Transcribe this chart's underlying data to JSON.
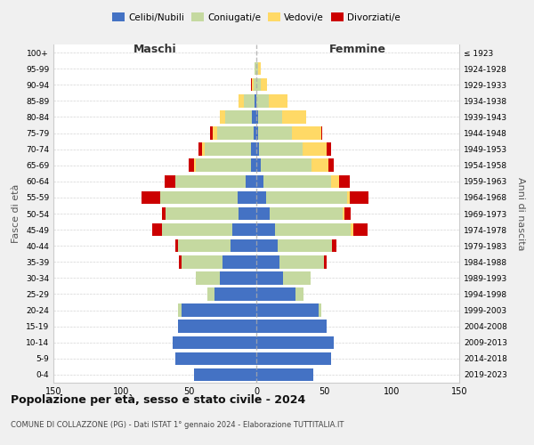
{
  "age_groups": [
    "0-4",
    "5-9",
    "10-14",
    "15-19",
    "20-24",
    "25-29",
    "30-34",
    "35-39",
    "40-44",
    "45-49",
    "50-54",
    "55-59",
    "60-64",
    "65-69",
    "70-74",
    "75-79",
    "80-84",
    "85-89",
    "90-94",
    "95-99",
    "100+"
  ],
  "birth_years": [
    "2019-2023",
    "2014-2018",
    "2009-2013",
    "2004-2008",
    "1999-2003",
    "1994-1998",
    "1989-1993",
    "1984-1988",
    "1979-1983",
    "1974-1978",
    "1969-1973",
    "1964-1968",
    "1959-1963",
    "1954-1958",
    "1949-1953",
    "1944-1948",
    "1939-1943",
    "1934-1938",
    "1929-1933",
    "1924-1928",
    "≤ 1923"
  ],
  "maschi": {
    "celibi": [
      46,
      60,
      62,
      58,
      55,
      31,
      27,
      25,
      19,
      18,
      13,
      14,
      8,
      4,
      4,
      2,
      3,
      1,
      0,
      0,
      0
    ],
    "coniugati": [
      0,
      0,
      0,
      0,
      3,
      5,
      18,
      30,
      39,
      52,
      54,
      57,
      52,
      41,
      34,
      27,
      20,
      8,
      2,
      1,
      0
    ],
    "vedovi": [
      0,
      0,
      0,
      0,
      0,
      0,
      0,
      0,
      0,
      0,
      0,
      0,
      0,
      1,
      2,
      3,
      4,
      4,
      1,
      0,
      0
    ],
    "divorziati": [
      0,
      0,
      0,
      0,
      0,
      0,
      0,
      2,
      2,
      7,
      3,
      14,
      8,
      4,
      3,
      2,
      0,
      0,
      1,
      0,
      0
    ]
  },
  "femmine": {
    "nubili": [
      42,
      55,
      57,
      52,
      46,
      29,
      20,
      17,
      16,
      14,
      10,
      7,
      5,
      3,
      2,
      1,
      1,
      0,
      0,
      0,
      0
    ],
    "coniugate": [
      0,
      0,
      0,
      0,
      2,
      6,
      20,
      33,
      40,
      56,
      54,
      60,
      50,
      38,
      32,
      25,
      18,
      9,
      3,
      1,
      0
    ],
    "vedove": [
      0,
      0,
      0,
      0,
      0,
      0,
      0,
      0,
      0,
      2,
      1,
      2,
      6,
      12,
      18,
      22,
      18,
      14,
      5,
      2,
      0
    ],
    "divorziate": [
      0,
      0,
      0,
      0,
      0,
      0,
      0,
      2,
      3,
      10,
      5,
      14,
      8,
      4,
      3,
      1,
      0,
      0,
      0,
      0,
      0
    ]
  },
  "colors": {
    "celibi": "#4472c4",
    "coniugati": "#c5d9a0",
    "vedovi": "#ffd966",
    "divorziati": "#cc0000"
  },
  "xlim": 150,
  "title": "Popolazione per età, sesso e stato civile - 2024",
  "subtitle": "COMUNE DI COLLAZZONE (PG) - Dati ISTAT 1° gennaio 2024 - Elaborazione TUTTITALIA.IT",
  "xlabel_left": "Maschi",
  "xlabel_right": "Femmine",
  "ylabel": "Fasce di età",
  "ylabel_right": "Anni di nascita",
  "bg_color": "#f0f0f0",
  "plot_bg_color": "#ffffff"
}
